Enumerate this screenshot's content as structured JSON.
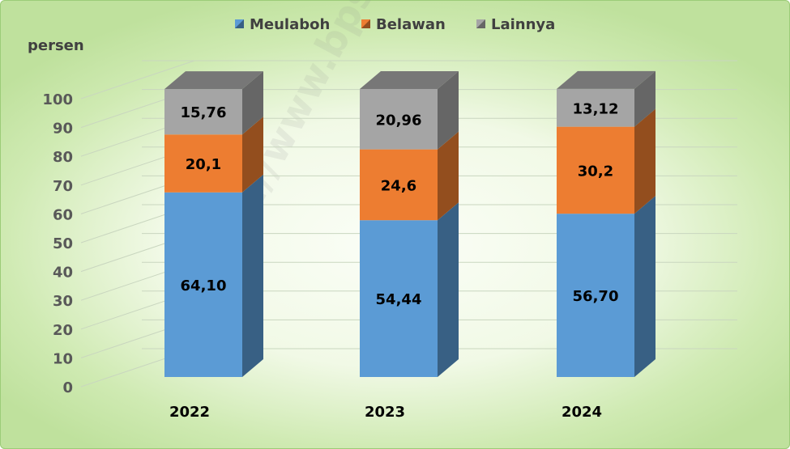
{
  "unit_label": "persen",
  "watermark": "https://www.bps.go.id",
  "chart_data": {
    "type": "bar",
    "stacked": true,
    "three_d": true,
    "categories": [
      "2022",
      "2023",
      "2024"
    ],
    "series": [
      {
        "name": "Meulaboh",
        "color": "#5b9bd5",
        "values": [
          64.1,
          54.44,
          56.7
        ],
        "labels": [
          "64,10",
          "54,44",
          "56,70"
        ]
      },
      {
        "name": "Belawan",
        "color": "#ed7d31",
        "values": [
          20.1,
          24.6,
          30.2
        ],
        "labels": [
          "20,1",
          "24,6",
          "30,2"
        ]
      },
      {
        "name": "Lainnya",
        "color": "#a5a5a5",
        "values": [
          15.76,
          20.96,
          13.12
        ],
        "labels": [
          "15,76",
          "20,96",
          "13,12"
        ]
      }
    ],
    "ylabel": "persen",
    "ylim": [
      0,
      100
    ],
    "yticks": [
      0,
      10,
      20,
      30,
      40,
      50,
      60,
      70,
      80,
      90,
      100
    ],
    "grid": true,
    "legend_position": "top-center"
  }
}
